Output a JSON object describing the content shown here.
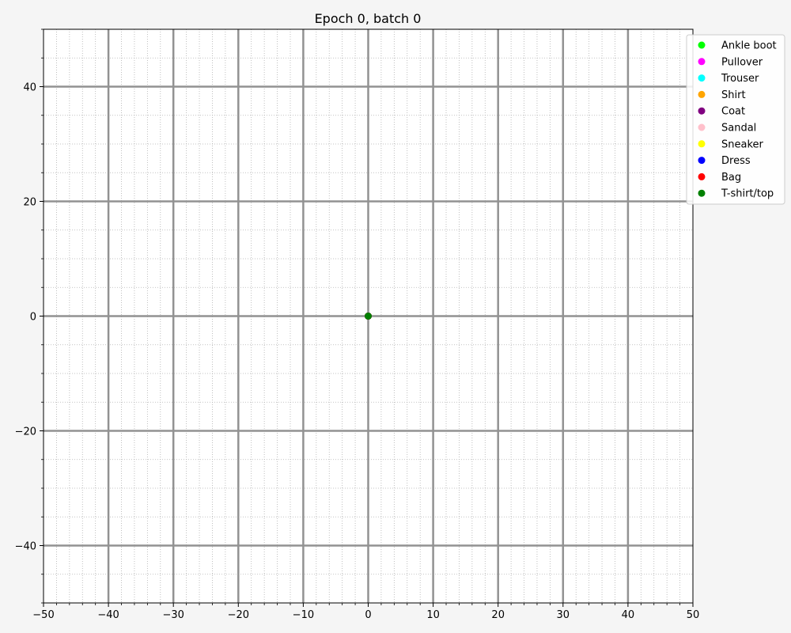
{
  "chart_data": {
    "type": "scatter",
    "title": "Epoch 0, batch 0",
    "xlabel": "",
    "ylabel": "",
    "xlim": [
      -50,
      50
    ],
    "ylim": [
      -50,
      50
    ],
    "xticks": [
      -50,
      -40,
      -30,
      -20,
      -10,
      0,
      10,
      20,
      30,
      40,
      50
    ],
    "yticks": [
      -40,
      -20,
      0,
      20,
      40
    ],
    "x_major_grid": [
      -40,
      -30,
      -20,
      -10,
      0,
      10,
      20,
      30,
      40
    ],
    "y_major_grid": [
      -40,
      -20,
      0,
      20,
      40
    ],
    "x_minor_step": 2,
    "y_minor_step": 5,
    "grid": true,
    "legend_position": "upper right, outside plot area",
    "series": [
      {
        "name": "Ankle boot",
        "color": "#00ff00",
        "points": [
          [
            0,
            0
          ]
        ]
      },
      {
        "name": "Pullover",
        "color": "#ff00ff",
        "points": [
          [
            0,
            0
          ]
        ]
      },
      {
        "name": "Trouser",
        "color": "#00ffff",
        "points": [
          [
            0,
            0
          ]
        ]
      },
      {
        "name": "Shirt",
        "color": "#ffa500",
        "points": [
          [
            0,
            0
          ]
        ]
      },
      {
        "name": "Coat",
        "color": "#800080",
        "points": [
          [
            0,
            0
          ]
        ]
      },
      {
        "name": "Sandal",
        "color": "#ffc0cb",
        "points": [
          [
            0,
            0
          ]
        ]
      },
      {
        "name": "Sneaker",
        "color": "#ffff00",
        "points": [
          [
            0,
            0
          ]
        ]
      },
      {
        "name": "Dress",
        "color": "#0000ff",
        "points": [
          [
            0,
            0
          ]
        ]
      },
      {
        "name": "Bag",
        "color": "#ff0000",
        "points": [
          [
            0,
            0
          ]
        ]
      },
      {
        "name": "T-shirt/top",
        "color": "#008000",
        "points": [
          [
            0,
            0
          ]
        ]
      }
    ]
  }
}
